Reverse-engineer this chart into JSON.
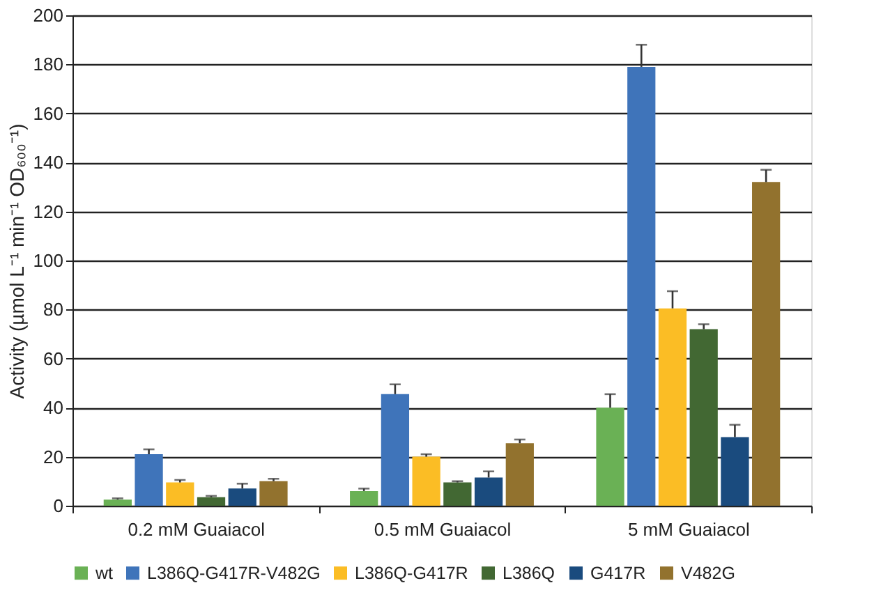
{
  "chart_data": {
    "type": "bar",
    "ylabel": "Activity (µmol L⁻¹ min⁻¹ OD₆₀₀⁻¹)",
    "categories": [
      "0.2 mM Guaiacol",
      "0.5 mM Guaiacol",
      "5 mM Guaiacol"
    ],
    "series": [
      {
        "name": "wt",
        "color": "#6ab155",
        "values": [
          2.5,
          6,
          40
        ],
        "errors": [
          0.5,
          1,
          5.5
        ]
      },
      {
        "name": "L386Q-G417R-V482G",
        "color": "#3f74ba",
        "values": [
          21,
          45.5,
          179
        ],
        "errors": [
          2,
          4,
          9
        ]
      },
      {
        "name": "L386Q-G417R",
        "color": "#fbbd25",
        "values": [
          9.5,
          20,
          80.5
        ],
        "errors": [
          1,
          1,
          7
        ]
      },
      {
        "name": "L386Q",
        "color": "#426833",
        "values": [
          3.5,
          9.5,
          72
        ],
        "errors": [
          0.5,
          0.5,
          2
        ]
      },
      {
        "name": "G417R",
        "color": "#1a4b7e",
        "values": [
          7,
          11.5,
          28
        ],
        "errors": [
          2,
          2.5,
          5
        ]
      },
      {
        "name": "V482G",
        "color": "#92722e",
        "values": [
          10,
          25.5,
          132
        ],
        "errors": [
          1,
          1.5,
          5
        ]
      }
    ],
    "ylim": [
      0,
      200
    ],
    "yticks": [
      0,
      20,
      40,
      60,
      80,
      100,
      120,
      140,
      160,
      180,
      200
    ],
    "grid": "y",
    "legend": "bottom"
  }
}
